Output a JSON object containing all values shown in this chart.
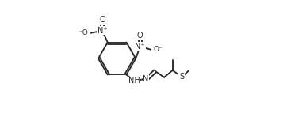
{
  "bg_color": "#ffffff",
  "line_color": "#2a2a2a",
  "lw": 1.35,
  "fs": 7.0,
  "fig_w": 3.62,
  "fig_h": 1.48,
  "dpi": 100,
  "xlim": [
    0.0,
    1.0
  ],
  "ylim": [
    0.05,
    0.95
  ]
}
